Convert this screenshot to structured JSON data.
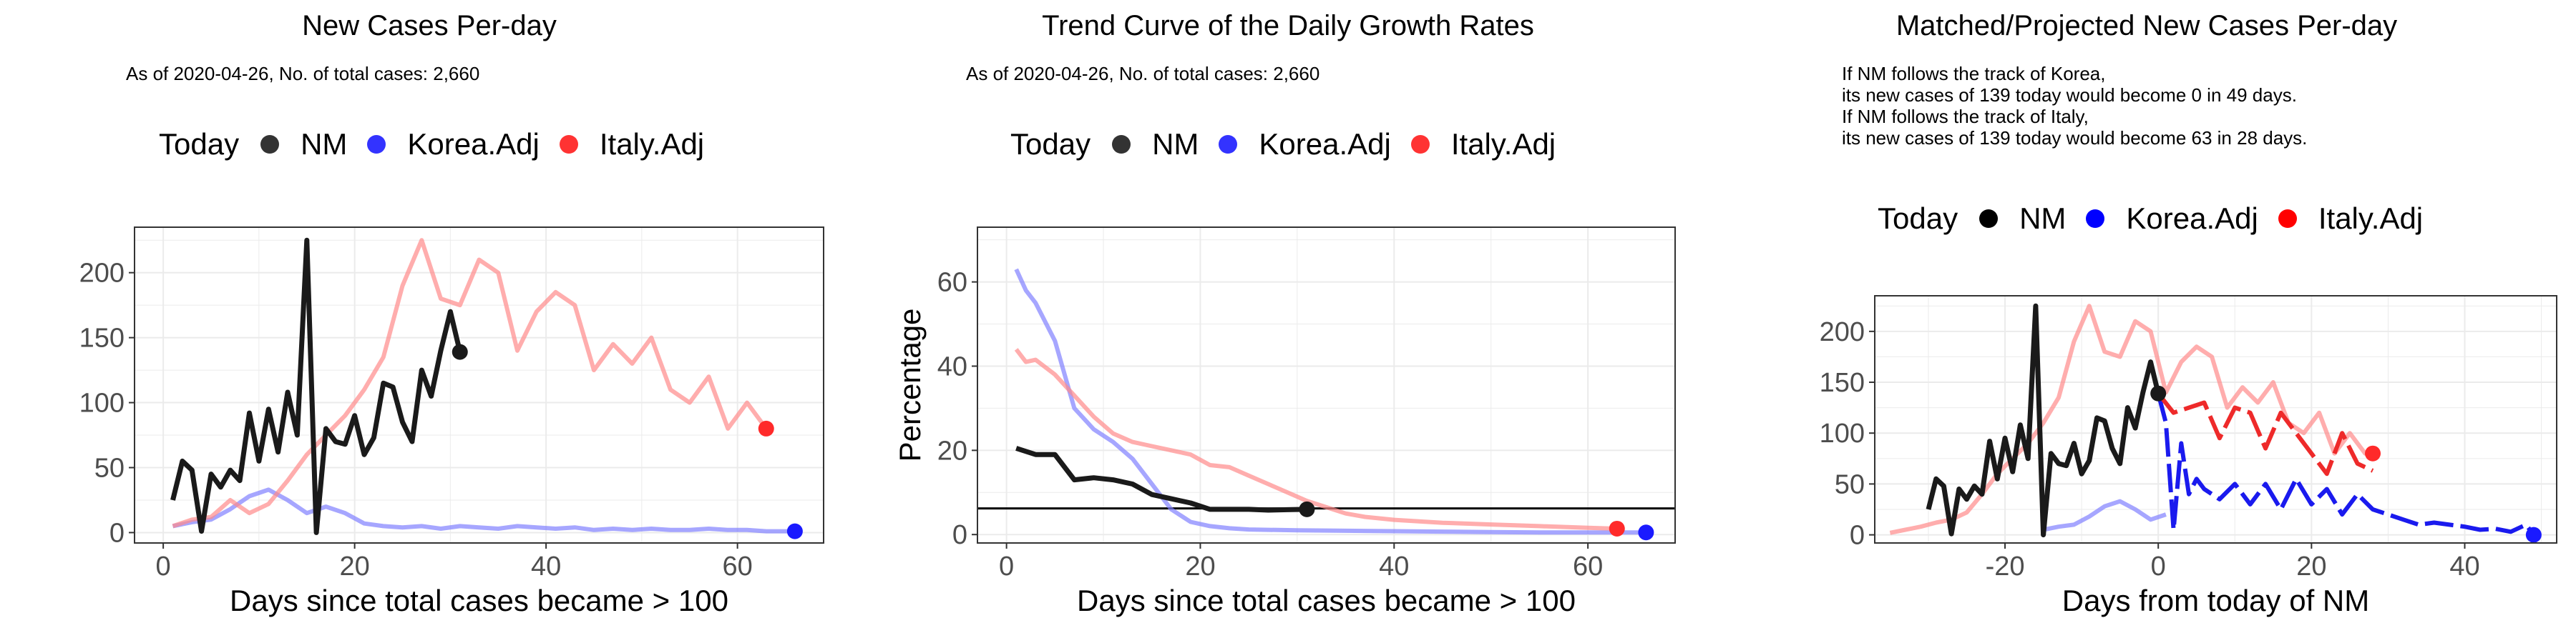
{
  "colors": {
    "nm": "#1a1a1a",
    "korea": "#8080ff",
    "italy": "#ff8a8a",
    "korea_dot": "#1a1aff",
    "italy_dot": "#ff2a2a",
    "korea_proj": "#1a1aee",
    "italy_proj": "#ee2a2a"
  },
  "legend": {
    "title": "Today",
    "items": [
      "NM",
      "Korea.Adj",
      "Italy.Adj"
    ]
  },
  "chart_data": [
    {
      "type": "line",
      "title": "New Cases Per-day",
      "subtitle_lines": [
        "As of 2020-04-26, No. of total cases: 2,660"
      ],
      "xlabel": "Days since total cases became > 100",
      "ylabel": "",
      "xlim": [
        -3,
        69
      ],
      "ylim": [
        -8,
        235
      ],
      "xticks": [
        0,
        20,
        40,
        60
      ],
      "yticks": [
        0,
        50,
        100,
        150,
        200
      ],
      "grid": true,
      "series": [
        {
          "name": "NM",
          "x": [
            1,
            2,
            3,
            4,
            5,
            6,
            7,
            8,
            9,
            10,
            11,
            12,
            13,
            14,
            15,
            16,
            17,
            18,
            19,
            20,
            21,
            22,
            23,
            24,
            25,
            26,
            27,
            28,
            29,
            30,
            31
          ],
          "y": [
            25,
            55,
            48,
            1,
            45,
            35,
            48,
            40,
            92,
            55,
            95,
            62,
            108,
            75,
            225,
            0,
            80,
            70,
            68,
            90,
            60,
            73,
            115,
            112,
            85,
            70,
            125,
            105,
            140,
            170,
            139
          ]
        },
        {
          "name": "Korea.Adj",
          "x": [
            1,
            3,
            5,
            7,
            9,
            11,
            13,
            15,
            17,
            19,
            21,
            23,
            25,
            27,
            29,
            31,
            33,
            35,
            37,
            39,
            41,
            43,
            45,
            47,
            49,
            51,
            53,
            55,
            57,
            59,
            61,
            63,
            65,
            66
          ],
          "y": [
            5,
            8,
            10,
            18,
            28,
            33,
            25,
            15,
            20,
            15,
            7,
            5,
            4,
            5,
            3,
            5,
            4,
            3,
            5,
            4,
            3,
            4,
            2,
            3,
            2,
            3,
            2,
            2,
            3,
            2,
            2,
            1,
            1,
            1
          ]
        },
        {
          "name": "Italy.Adj",
          "x": [
            1,
            3,
            5,
            7,
            9,
            11,
            13,
            15,
            17,
            19,
            21,
            23,
            25,
            27,
            29,
            31,
            33,
            35,
            37,
            39,
            41,
            43,
            45,
            47,
            49,
            51,
            53,
            55,
            57,
            59,
            61,
            63
          ],
          "y": [
            5,
            10,
            12,
            25,
            15,
            22,
            40,
            60,
            75,
            90,
            110,
            135,
            190,
            225,
            180,
            175,
            210,
            200,
            140,
            170,
            185,
            175,
            125,
            145,
            130,
            150,
            110,
            100,
            120,
            80,
            100,
            80
          ]
        }
      ],
      "today": [
        {
          "name": "NM",
          "x": 31,
          "y": 139
        },
        {
          "name": "Korea.Adj",
          "x": 66,
          "y": 1
        },
        {
          "name": "Italy.Adj",
          "x": 63,
          "y": 80
        }
      ]
    },
    {
      "type": "line",
      "title": "Trend Curve of the Daily Growth Rates",
      "subtitle_lines": [
        "As of 2020-04-26, No. of total cases: 2,660"
      ],
      "xlabel": "Days since total cases became > 100",
      "ylabel": "Percentage",
      "xlim": [
        -3,
        69
      ],
      "ylim": [
        -2,
        73
      ],
      "xticks": [
        0,
        20,
        40,
        60
      ],
      "yticks": [
        0,
        20,
        40,
        60
      ],
      "hline": 6.2,
      "grid": true,
      "series": [
        {
          "name": "NM",
          "x": [
            1,
            3,
            5,
            7,
            9,
            11,
            13,
            15,
            17,
            19,
            21,
            23,
            25,
            27,
            29,
            31
          ],
          "y": [
            20.5,
            19,
            19,
            13,
            13.5,
            13,
            12,
            9.5,
            8.5,
            7.5,
            6,
            6,
            6,
            5.8,
            5.9,
            6
          ]
        },
        {
          "name": "Korea.Adj",
          "x": [
            1,
            2,
            3,
            5,
            7,
            9,
            11,
            13,
            15,
            17,
            19,
            21,
            23,
            25,
            30,
            35,
            40,
            45,
            50,
            55,
            60,
            66
          ],
          "y": [
            63,
            58,
            55,
            46,
            30,
            25,
            22,
            18,
            12,
            6,
            3,
            2,
            1.5,
            1.2,
            1,
            0.9,
            0.8,
            0.7,
            0.6,
            0.5,
            0.5,
            0.5
          ]
        },
        {
          "name": "Italy.Adj",
          "x": [
            1,
            2,
            3,
            5,
            7,
            9,
            11,
            13,
            15,
            17,
            19,
            21,
            23,
            25,
            27,
            29,
            31,
            33,
            35,
            37,
            40,
            45,
            50,
            55,
            60,
            63
          ],
          "y": [
            44,
            41,
            41.5,
            38,
            33,
            28,
            24,
            22,
            21,
            20,
            19,
            16.5,
            16,
            14,
            12,
            10,
            8,
            6.5,
            5,
            4.2,
            3.5,
            2.8,
            2.4,
            2,
            1.6,
            1.4
          ]
        }
      ],
      "today": [
        {
          "name": "NM",
          "x": 31,
          "y": 6
        },
        {
          "name": "Korea.Adj",
          "x": 66,
          "y": 0.5
        },
        {
          "name": "Italy.Adj",
          "x": 63,
          "y": 1.4
        }
      ]
    },
    {
      "type": "line",
      "title": "Matched/Projected New Cases Per-day",
      "subtitle_lines": [
        "If NM follows the track of Korea,",
        "its new cases of 139 today would become 0 in 49 days.",
        "If NM follows the track of Italy,",
        "its new cases of 139 today would become 63 in 28 days."
      ],
      "xlabel": "Days from today of NM",
      "ylabel": "",
      "xlim": [
        -37,
        52
      ],
      "ylim": [
        -8,
        235
      ],
      "xticks": [
        -20,
        0,
        20,
        40
      ],
      "yticks": [
        0,
        50,
        100,
        150,
        200
      ],
      "grid": true,
      "series": [
        {
          "name": "NM",
          "x": [
            -30,
            -29,
            -28,
            -27,
            -26,
            -25,
            -24,
            -23,
            -22,
            -21,
            -20,
            -19,
            -18,
            -17,
            -16,
            -15,
            -14,
            -13,
            -12,
            -11,
            -10,
            -9,
            -8,
            -7,
            -6,
            -5,
            -4,
            -3,
            -2,
            -1,
            0
          ],
          "y": [
            25,
            55,
            48,
            1,
            45,
            35,
            48,
            40,
            92,
            55,
            95,
            62,
            108,
            75,
            225,
            0,
            80,
            70,
            68,
            90,
            60,
            73,
            115,
            112,
            85,
            70,
            125,
            105,
            140,
            170,
            139
          ]
        },
        {
          "name": "Korea.Adj",
          "x": [
            -15,
            -13,
            -11,
            -9,
            -7,
            -5,
            -3,
            -1,
            1
          ],
          "y": [
            5,
            8,
            10,
            18,
            28,
            33,
            25,
            15,
            20
          ]
        },
        {
          "name": "Italy.Adj",
          "x": [
            -35,
            -33,
            -31,
            -29,
            -27,
            -25,
            -23,
            -21,
            -19,
            -17,
            -15,
            -13,
            -11,
            -9,
            -7,
            -5,
            -3,
            -1,
            1,
            3,
            5,
            7,
            9,
            11,
            13,
            15,
            17,
            19,
            21,
            23,
            25,
            27,
            28
          ],
          "y": [
            2,
            5,
            8,
            12,
            15,
            22,
            40,
            60,
            75,
            90,
            110,
            135,
            190,
            225,
            180,
            175,
            210,
            200,
            140,
            170,
            185,
            175,
            125,
            145,
            130,
            150,
            110,
            100,
            120,
            80,
            100,
            80,
            80
          ]
        }
      ],
      "projection": [
        {
          "name": "Korea.Adj",
          "x": [
            0,
            1,
            2,
            3,
            4,
            5,
            6,
            8,
            10,
            12,
            14,
            16,
            18,
            20,
            22,
            24,
            26,
            28,
            30,
            32,
            34,
            36,
            38,
            40,
            42,
            44,
            46,
            48,
            49
          ],
          "y": [
            139,
            110,
            5,
            90,
            40,
            55,
            45,
            35,
            50,
            30,
            50,
            25,
            55,
            30,
            45,
            20,
            40,
            25,
            20,
            15,
            10,
            12,
            10,
            8,
            5,
            6,
            3,
            10,
            0
          ]
        },
        {
          "name": "Italy.Adj",
          "x": [
            0,
            2,
            4,
            6,
            8,
            10,
            12,
            14,
            16,
            18,
            20,
            22,
            24,
            26,
            28
          ],
          "y": [
            139,
            120,
            125,
            130,
            95,
            125,
            120,
            85,
            120,
            100,
            80,
            60,
            100,
            70,
            63
          ]
        }
      ],
      "today": [
        {
          "name": "NM",
          "x": 0,
          "y": 139
        },
        {
          "name": "Korea.Adj",
          "x": 49,
          "y": 0
        },
        {
          "name": "Italy.Adj",
          "x": 28,
          "y": 80
        }
      ]
    }
  ]
}
